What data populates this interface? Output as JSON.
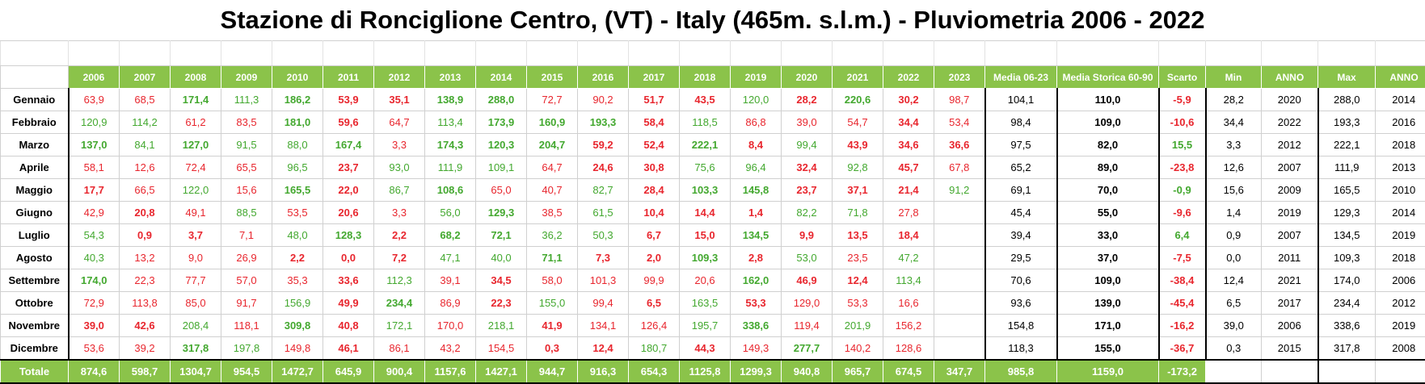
{
  "title": "Stazione di Ronciglione Centro, (VT) - Italy (465m. s.l.m.) - Pluviometria 2006 - 2022",
  "headers": [
    "2006",
    "2007",
    "2008",
    "2009",
    "2010",
    "2011",
    "2012",
    "2013",
    "2014",
    "2015",
    "2016",
    "2017",
    "2018",
    "2019",
    "2020",
    "2021",
    "2022",
    "2023",
    "Media 06-23",
    "Media Storica 60-90",
    "Scarto",
    "Min",
    "ANNO",
    "Max",
    "ANNO"
  ],
  "colors": {
    "header_green": "#8bc34a",
    "below_avg_red": "#e8262e",
    "above_avg_green": "#43a82f"
  },
  "rows": [
    {
      "month": "Gennaio",
      "values": [
        [
          "63,9",
          "r",
          0
        ],
        [
          "68,5",
          "r",
          0
        ],
        [
          "171,4",
          "g",
          1
        ],
        [
          "111,3",
          "g",
          0
        ],
        [
          "186,2",
          "g",
          1
        ],
        [
          "53,9",
          "r",
          1
        ],
        [
          "35,1",
          "r",
          1
        ],
        [
          "138,9",
          "g",
          1
        ],
        [
          "288,0",
          "g",
          1
        ],
        [
          "72,7",
          "r",
          0
        ],
        [
          "90,2",
          "r",
          0
        ],
        [
          "51,7",
          "r",
          1
        ],
        [
          "43,5",
          "r",
          1
        ],
        [
          "120,0",
          "g",
          0
        ],
        [
          "28,2",
          "r",
          1
        ],
        [
          "220,6",
          "g",
          1
        ],
        [
          "30,2",
          "r",
          1
        ],
        [
          "98,7",
          "r",
          0
        ]
      ],
      "media": "104,1",
      "storica": "110,0",
      "scarto": [
        "-5,9",
        "r"
      ],
      "min": "28,2",
      "min_anno": "2020",
      "max": "288,0",
      "max_anno": "2014"
    },
    {
      "month": "Febbraio",
      "values": [
        [
          "120,9",
          "g",
          0
        ],
        [
          "114,2",
          "g",
          0
        ],
        [
          "61,2",
          "r",
          0
        ],
        [
          "83,5",
          "r",
          0
        ],
        [
          "181,0",
          "g",
          1
        ],
        [
          "59,6",
          "r",
          1
        ],
        [
          "64,7",
          "r",
          0
        ],
        [
          "113,4",
          "g",
          0
        ],
        [
          "173,9",
          "g",
          1
        ],
        [
          "160,9",
          "g",
          1
        ],
        [
          "193,3",
          "g",
          1
        ],
        [
          "58,4",
          "r",
          1
        ],
        [
          "118,5",
          "g",
          0
        ],
        [
          "86,8",
          "r",
          0
        ],
        [
          "39,0",
          "r",
          0
        ],
        [
          "54,7",
          "r",
          0
        ],
        [
          "34,4",
          "r",
          1
        ],
        [
          "53,4",
          "r",
          0
        ]
      ],
      "media": "98,4",
      "storica": "109,0",
      "scarto": [
        "-10,6",
        "r"
      ],
      "min": "34,4",
      "min_anno": "2022",
      "max": "193,3",
      "max_anno": "2016"
    },
    {
      "month": "Marzo",
      "values": [
        [
          "137,0",
          "g",
          1
        ],
        [
          "84,1",
          "g",
          0
        ],
        [
          "127,0",
          "g",
          1
        ],
        [
          "91,5",
          "g",
          0
        ],
        [
          "88,0",
          "g",
          0
        ],
        [
          "167,4",
          "g",
          1
        ],
        [
          "3,3",
          "r",
          0
        ],
        [
          "174,3",
          "g",
          1
        ],
        [
          "120,3",
          "g",
          1
        ],
        [
          "204,7",
          "g",
          1
        ],
        [
          "59,2",
          "r",
          1
        ],
        [
          "52,4",
          "r",
          1
        ],
        [
          "222,1",
          "g",
          1
        ],
        [
          "8,4",
          "r",
          1
        ],
        [
          "99,4",
          "g",
          0
        ],
        [
          "43,9",
          "r",
          1
        ],
        [
          "34,6",
          "r",
          1
        ],
        [
          "36,6",
          "r",
          1
        ]
      ],
      "media": "97,5",
      "storica": "82,0",
      "scarto": [
        "15,5",
        "g"
      ],
      "min": "3,3",
      "min_anno": "2012",
      "max": "222,1",
      "max_anno": "2018"
    },
    {
      "month": "Aprile",
      "values": [
        [
          "58,1",
          "r",
          0
        ],
        [
          "12,6",
          "r",
          0
        ],
        [
          "72,4",
          "r",
          0
        ],
        [
          "65,5",
          "r",
          0
        ],
        [
          "96,5",
          "g",
          0
        ],
        [
          "23,7",
          "r",
          1
        ],
        [
          "93,0",
          "g",
          0
        ],
        [
          "111,9",
          "g",
          0
        ],
        [
          "109,1",
          "g",
          0
        ],
        [
          "64,7",
          "r",
          0
        ],
        [
          "24,6",
          "r",
          1
        ],
        [
          "30,8",
          "r",
          1
        ],
        [
          "75,6",
          "g",
          0
        ],
        [
          "96,4",
          "g",
          0
        ],
        [
          "32,4",
          "r",
          1
        ],
        [
          "92,8",
          "g",
          0
        ],
        [
          "45,7",
          "r",
          1
        ],
        [
          "67,8",
          "r",
          0
        ]
      ],
      "media": "65,2",
      "storica": "89,0",
      "scarto": [
        "-23,8",
        "r"
      ],
      "min": "12,6",
      "min_anno": "2007",
      "max": "111,9",
      "max_anno": "2013"
    },
    {
      "month": "Maggio",
      "values": [
        [
          "17,7",
          "r",
          1
        ],
        [
          "66,5",
          "r",
          0
        ],
        [
          "122,0",
          "g",
          0
        ],
        [
          "15,6",
          "r",
          0
        ],
        [
          "165,5",
          "g",
          1
        ],
        [
          "22,0",
          "r",
          1
        ],
        [
          "86,7",
          "g",
          0
        ],
        [
          "108,6",
          "g",
          1
        ],
        [
          "65,0",
          "r",
          0
        ],
        [
          "40,7",
          "r",
          0
        ],
        [
          "82,7",
          "g",
          0
        ],
        [
          "28,4",
          "r",
          1
        ],
        [
          "103,3",
          "g",
          1
        ],
        [
          "145,8",
          "g",
          1
        ],
        [
          "23,7",
          "r",
          1
        ],
        [
          "37,1",
          "r",
          1
        ],
        [
          "21,4",
          "r",
          1
        ],
        [
          "91,2",
          "g",
          0
        ]
      ],
      "media": "69,1",
      "storica": "70,0",
      "scarto": [
        "-0,9",
        "g"
      ],
      "min": "15,6",
      "min_anno": "2009",
      "max": "165,5",
      "max_anno": "2010"
    },
    {
      "month": "Giugno",
      "values": [
        [
          "42,9",
          "r",
          0
        ],
        [
          "20,8",
          "r",
          1
        ],
        [
          "49,1",
          "r",
          0
        ],
        [
          "88,5",
          "g",
          0
        ],
        [
          "53,5",
          "r",
          0
        ],
        [
          "20,6",
          "r",
          1
        ],
        [
          "3,3",
          "r",
          0
        ],
        [
          "56,0",
          "g",
          0
        ],
        [
          "129,3",
          "g",
          1
        ],
        [
          "38,5",
          "r",
          0
        ],
        [
          "61,5",
          "g",
          0
        ],
        [
          "10,4",
          "r",
          1
        ],
        [
          "14,4",
          "r",
          1
        ],
        [
          "1,4",
          "r",
          1
        ],
        [
          "82,2",
          "g",
          0
        ],
        [
          "71,8",
          "g",
          0
        ],
        [
          "27,8",
          "r",
          0
        ],
        [
          "",
          "",
          0
        ]
      ],
      "media": "45,4",
      "storica": "55,0",
      "scarto": [
        "-9,6",
        "r"
      ],
      "min": "1,4",
      "min_anno": "2019",
      "max": "129,3",
      "max_anno": "2014"
    },
    {
      "month": "Luglio",
      "values": [
        [
          "54,3",
          "g",
          0
        ],
        [
          "0,9",
          "r",
          1
        ],
        [
          "3,7",
          "r",
          1
        ],
        [
          "7,1",
          "r",
          0
        ],
        [
          "48,0",
          "g",
          0
        ],
        [
          "128,3",
          "g",
          1
        ],
        [
          "2,2",
          "r",
          1
        ],
        [
          "68,2",
          "g",
          1
        ],
        [
          "72,1",
          "g",
          1
        ],
        [
          "36,2",
          "g",
          0
        ],
        [
          "50,3",
          "g",
          0
        ],
        [
          "6,7",
          "r",
          1
        ],
        [
          "15,0",
          "r",
          1
        ],
        [
          "134,5",
          "g",
          1
        ],
        [
          "9,9",
          "r",
          1
        ],
        [
          "13,5",
          "r",
          1
        ],
        [
          "18,4",
          "r",
          1
        ],
        [
          "",
          "",
          0
        ]
      ],
      "media": "39,4",
      "storica": "33,0",
      "scarto": [
        "6,4",
        "g"
      ],
      "min": "0,9",
      "min_anno": "2007",
      "max": "134,5",
      "max_anno": "2019"
    },
    {
      "month": "Agosto",
      "values": [
        [
          "40,3",
          "g",
          0
        ],
        [
          "13,2",
          "r",
          0
        ],
        [
          "9,0",
          "r",
          0
        ],
        [
          "26,9",
          "r",
          0
        ],
        [
          "2,2",
          "r",
          1
        ],
        [
          "0,0",
          "r",
          1
        ],
        [
          "7,2",
          "r",
          1
        ],
        [
          "47,1",
          "g",
          0
        ],
        [
          "40,0",
          "g",
          0
        ],
        [
          "71,1",
          "g",
          1
        ],
        [
          "7,3",
          "r",
          1
        ],
        [
          "2,0",
          "r",
          1
        ],
        [
          "109,3",
          "g",
          1
        ],
        [
          "2,8",
          "r",
          1
        ],
        [
          "53,0",
          "g",
          0
        ],
        [
          "23,5",
          "r",
          0
        ],
        [
          "47,2",
          "g",
          0
        ],
        [
          "",
          "",
          0
        ]
      ],
      "media": "29,5",
      "storica": "37,0",
      "scarto": [
        "-7,5",
        "r"
      ],
      "min": "0,0",
      "min_anno": "2011",
      "max": "109,3",
      "max_anno": "2018"
    },
    {
      "month": "Settembre",
      "values": [
        [
          "174,0",
          "g",
          1
        ],
        [
          "22,3",
          "r",
          0
        ],
        [
          "77,7",
          "r",
          0
        ],
        [
          "57,0",
          "r",
          0
        ],
        [
          "35,3",
          "r",
          0
        ],
        [
          "33,6",
          "r",
          1
        ],
        [
          "112,3",
          "g",
          0
        ],
        [
          "39,1",
          "r",
          0
        ],
        [
          "34,5",
          "r",
          1
        ],
        [
          "58,0",
          "r",
          0
        ],
        [
          "101,3",
          "r",
          0
        ],
        [
          "99,9",
          "r",
          0
        ],
        [
          "20,6",
          "r",
          0
        ],
        [
          "162,0",
          "g",
          1
        ],
        [
          "46,9",
          "r",
          1
        ],
        [
          "12,4",
          "r",
          1
        ],
        [
          "113,4",
          "g",
          0
        ],
        [
          "",
          "",
          0
        ]
      ],
      "media": "70,6",
      "storica": "109,0",
      "scarto": [
        "-38,4",
        "r"
      ],
      "min": "12,4",
      "min_anno": "2021",
      "max": "174,0",
      "max_anno": "2006"
    },
    {
      "month": "Ottobre",
      "values": [
        [
          "72,9",
          "r",
          0
        ],
        [
          "113,8",
          "r",
          0
        ],
        [
          "85,0",
          "r",
          0
        ],
        [
          "91,7",
          "r",
          0
        ],
        [
          "156,9",
          "g",
          0
        ],
        [
          "49,9",
          "r",
          1
        ],
        [
          "234,4",
          "g",
          1
        ],
        [
          "86,9",
          "r",
          0
        ],
        [
          "22,3",
          "r",
          1
        ],
        [
          "155,0",
          "g",
          0
        ],
        [
          "99,4",
          "r",
          0
        ],
        [
          "6,5",
          "r",
          1
        ],
        [
          "163,5",
          "g",
          0
        ],
        [
          "53,3",
          "r",
          1
        ],
        [
          "129,0",
          "r",
          0
        ],
        [
          "53,3",
          "r",
          0
        ],
        [
          "16,6",
          "r",
          0
        ],
        [
          "",
          "",
          0
        ]
      ],
      "media": "93,6",
      "storica": "139,0",
      "scarto": [
        "-45,4",
        "r"
      ],
      "min": "6,5",
      "min_anno": "2017",
      "max": "234,4",
      "max_anno": "2012"
    },
    {
      "month": "Novembre",
      "values": [
        [
          "39,0",
          "r",
          1
        ],
        [
          "42,6",
          "r",
          1
        ],
        [
          "208,4",
          "g",
          0
        ],
        [
          "118,1",
          "r",
          0
        ],
        [
          "309,8",
          "g",
          1
        ],
        [
          "40,8",
          "r",
          1
        ],
        [
          "172,1",
          "g",
          0
        ],
        [
          "170,0",
          "r",
          0
        ],
        [
          "218,1",
          "g",
          0
        ],
        [
          "41,9",
          "r",
          1
        ],
        [
          "134,1",
          "r",
          0
        ],
        [
          "126,4",
          "r",
          0
        ],
        [
          "195,7",
          "g",
          0
        ],
        [
          "338,6",
          "g",
          1
        ],
        [
          "119,4",
          "r",
          0
        ],
        [
          "201,9",
          "g",
          0
        ],
        [
          "156,2",
          "r",
          0
        ],
        [
          "",
          "",
          0
        ]
      ],
      "media": "154,8",
      "storica": "171,0",
      "scarto": [
        "-16,2",
        "r"
      ],
      "min": "39,0",
      "min_anno": "2006",
      "max": "338,6",
      "max_anno": "2019"
    },
    {
      "month": "Dicembre",
      "values": [
        [
          "53,6",
          "r",
          0
        ],
        [
          "39,2",
          "r",
          0
        ],
        [
          "317,8",
          "g",
          1
        ],
        [
          "197,8",
          "g",
          0
        ],
        [
          "149,8",
          "r",
          0
        ],
        [
          "46,1",
          "r",
          1
        ],
        [
          "86,1",
          "r",
          0
        ],
        [
          "43,2",
          "r",
          0
        ],
        [
          "154,5",
          "r",
          0
        ],
        [
          "0,3",
          "r",
          1
        ],
        [
          "12,4",
          "r",
          1
        ],
        [
          "180,7",
          "g",
          0
        ],
        [
          "44,3",
          "r",
          1
        ],
        [
          "149,3",
          "r",
          0
        ],
        [
          "277,7",
          "g",
          1
        ],
        [
          "140,2",
          "r",
          0
        ],
        [
          "128,6",
          "r",
          0
        ],
        [
          "",
          "",
          0
        ]
      ],
      "media": "118,3",
      "storica": "155,0",
      "scarto": [
        "-36,7",
        "r"
      ],
      "min": "0,3",
      "min_anno": "2015",
      "max": "317,8",
      "max_anno": "2008"
    }
  ],
  "totals": {
    "label": "Totale",
    "values": [
      "874,6",
      "598,7",
      "1304,7",
      "954,5",
      "1472,7",
      "645,9",
      "900,4",
      "1157,6",
      "1427,1",
      "944,7",
      "916,3",
      "654,3",
      "1125,8",
      "1299,3",
      "940,8",
      "965,7",
      "674,5",
      "347,7"
    ],
    "media": "985,8",
    "storica": "1159,0",
    "scarto": "-173,2"
  }
}
